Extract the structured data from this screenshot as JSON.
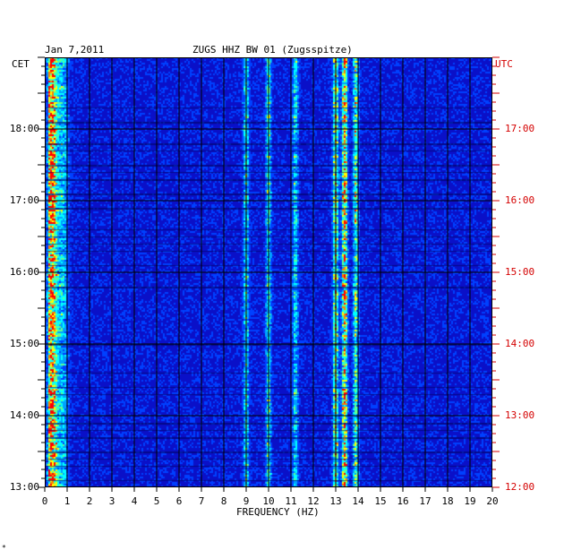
{
  "header": {
    "date": "Jan 7,2011",
    "station": "ZUGS HHZ BW 01 (Zugsspitze)",
    "left_tz": "CET",
    "right_tz": "UTC"
  },
  "footer": {
    "mark": "*"
  },
  "chart_data": {
    "type": "heatmap",
    "title": "ZUGS HHZ BW 01 (Zugsspitze)",
    "date": "Jan 7,2011",
    "xlabel": "FREQUENCY (HZ)",
    "xlim": [
      0,
      20
    ],
    "x_ticks": [
      "0",
      "1",
      "2",
      "3",
      "4",
      "5",
      "6",
      "7",
      "8",
      "9",
      "10",
      "11",
      "12",
      "13",
      "14",
      "15",
      "16",
      "17",
      "18",
      "19",
      "20"
    ],
    "y_left_label": "CET",
    "y_right_label": "UTC",
    "y_left_ticks": [
      "18:00",
      "17:00",
      "16:00",
      "15:00",
      "14:00",
      "13:00"
    ],
    "y_right_ticks": [
      "17:00",
      "16:00",
      "15:00",
      "14:00",
      "13:00",
      "12:00"
    ],
    "grid": true,
    "colormap": [
      "#00007a",
      "#0a10c8",
      "#0040ff",
      "#00a0ff",
      "#00ffff",
      "#60ff90",
      "#ffff00",
      "#ff8000",
      "#ff0000"
    ],
    "frequency_bands_hz": [
      {
        "center": 0.3,
        "intensity": 0.95
      },
      {
        "center": 0.8,
        "intensity": 0.35
      },
      {
        "center": 9.0,
        "intensity": 0.45
      },
      {
        "center": 10.0,
        "intensity": 0.45
      },
      {
        "center": 11.2,
        "intensity": 0.4
      },
      {
        "center": 13.0,
        "intensity": 0.7
      },
      {
        "center": 13.4,
        "intensity": 0.85
      },
      {
        "center": 13.9,
        "intensity": 0.55
      }
    ]
  }
}
